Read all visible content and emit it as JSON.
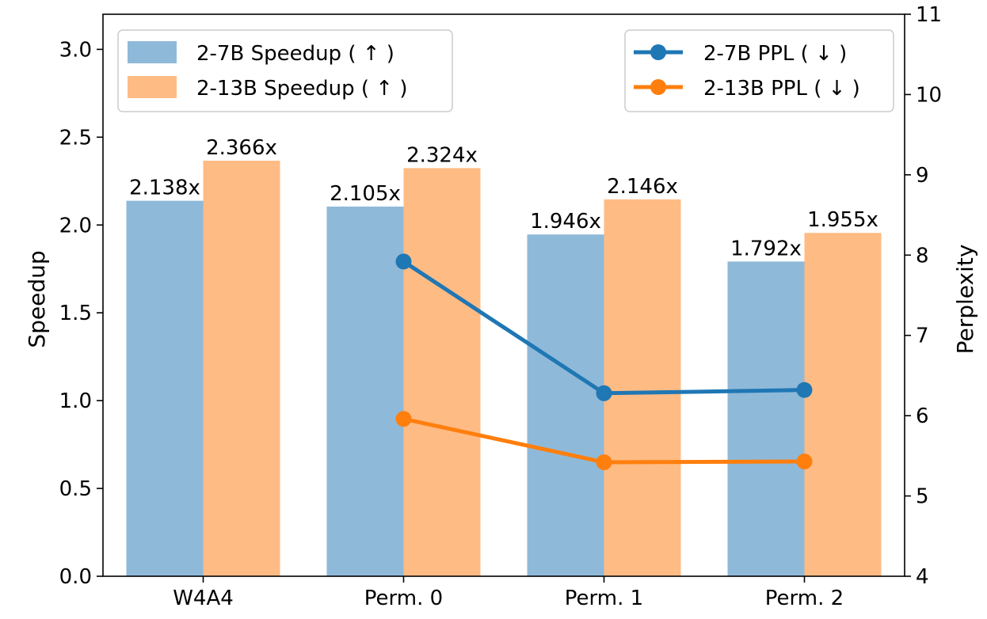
{
  "chart_data": {
    "type": "bar",
    "categories": [
      "W4A4",
      "Perm. 0",
      "Perm. 1",
      "Perm. 2"
    ],
    "bar_series": [
      {
        "name": "2-7B Speedup ( ↑ )",
        "color": "#8fb9d9",
        "values": [
          2.138,
          2.105,
          1.946,
          1.792
        ],
        "labels": [
          "2.138x",
          "2.105x",
          "1.946x",
          "1.792x"
        ]
      },
      {
        "name": "2-13B Speedup ( ↑ )",
        "color": "#ffbb84",
        "values": [
          2.366,
          2.324,
          2.146,
          1.955
        ],
        "labels": [
          "2.366x",
          "2.324x",
          "2.146x",
          "1.955x"
        ]
      }
    ],
    "line_series": [
      {
        "name": "2-7B PPL ( ↓ )",
        "color": "#1f77b4",
        "points": [
          {
            "category": "Perm. 0",
            "value": 7.92
          },
          {
            "category": "Perm. 1",
            "value": 6.28
          },
          {
            "category": "Perm. 2",
            "value": 6.32
          }
        ]
      },
      {
        "name": "2-13B PPL ( ↓ )",
        "color": "#ff7f0e",
        "points": [
          {
            "category": "Perm. 0",
            "value": 5.96
          },
          {
            "category": "Perm. 1",
            "value": 5.42
          },
          {
            "category": "Perm. 2",
            "value": 5.43
          }
        ]
      }
    ],
    "ylabel": "Speedup",
    "y2label": "Perplexity",
    "ylim": [
      0,
      3.2
    ],
    "y2lim": [
      4,
      11
    ],
    "yticks": [
      "0.0",
      "0.5",
      "1.0",
      "1.5",
      "2.0",
      "2.5",
      "3.0"
    ],
    "y2ticks": [
      "4",
      "5",
      "6",
      "7",
      "8",
      "9",
      "10",
      "11"
    ],
    "grid": false,
    "legend_bars_position": "upper-left",
    "legend_lines_position": "upper-right"
  }
}
